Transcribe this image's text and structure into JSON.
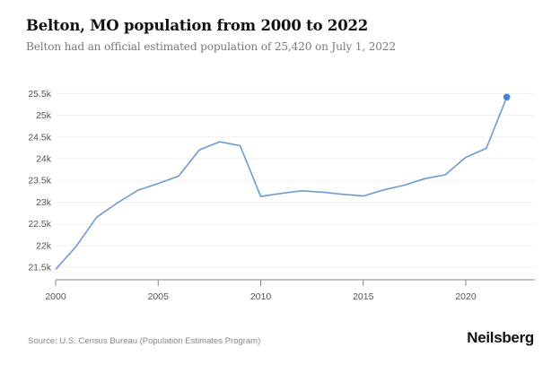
{
  "header": {
    "title": "Belton, MO population from 2000 to 2022",
    "subtitle": "Belton had an official estimated population of 25,420 on July 1, 2022"
  },
  "footer": {
    "source": "Source: U.S. Census Bureau (Population Estimates Program)",
    "brand": "Neilsberg"
  },
  "colors": {
    "line": "#6b9bd1",
    "highlight_dot": "#3d84e6",
    "grid": "#f0f0f0",
    "axis": "#888888"
  },
  "chart_data": {
    "type": "line",
    "title": "Belton, MO population from 2000 to 2022",
    "subtitle": "Belton had an official estimated population of 25,420 on July 1, 2022",
    "xlabel": "",
    "ylabel": "",
    "x": [
      2000,
      2001,
      2002,
      2003,
      2004,
      2005,
      2006,
      2007,
      2008,
      2009,
      2010,
      2011,
      2012,
      2013,
      2014,
      2015,
      2016,
      2017,
      2018,
      2019,
      2020,
      2021,
      2022
    ],
    "series": [
      {
        "name": "Population",
        "values": [
          21450,
          21980,
          22650,
          22980,
          23270,
          23430,
          23600,
          24200,
          24390,
          24300,
          23130,
          23200,
          23260,
          23230,
          23180,
          23140,
          23280,
          23390,
          23540,
          23630,
          24030,
          24240,
          25420
        ]
      }
    ],
    "highlight": {
      "x": 2022,
      "value": 25420
    },
    "xlim": [
      2000,
      2023.4
    ],
    "ylim": [
      21200,
      25600
    ],
    "xticks": [
      2000,
      2005,
      2010,
      2015,
      2020
    ],
    "xtick_labels": [
      "2000",
      "2005",
      "2010",
      "2015",
      "2020"
    ],
    "yticks": [
      21500,
      22000,
      22500,
      23000,
      23500,
      24000,
      24500,
      25000,
      25500
    ],
    "ytick_labels": [
      "21.5k",
      "22k",
      "22.5k",
      "23k",
      "23.5k",
      "24k",
      "24.5k",
      "25k",
      "25.5k"
    ],
    "grid": true,
    "legend": "none"
  }
}
